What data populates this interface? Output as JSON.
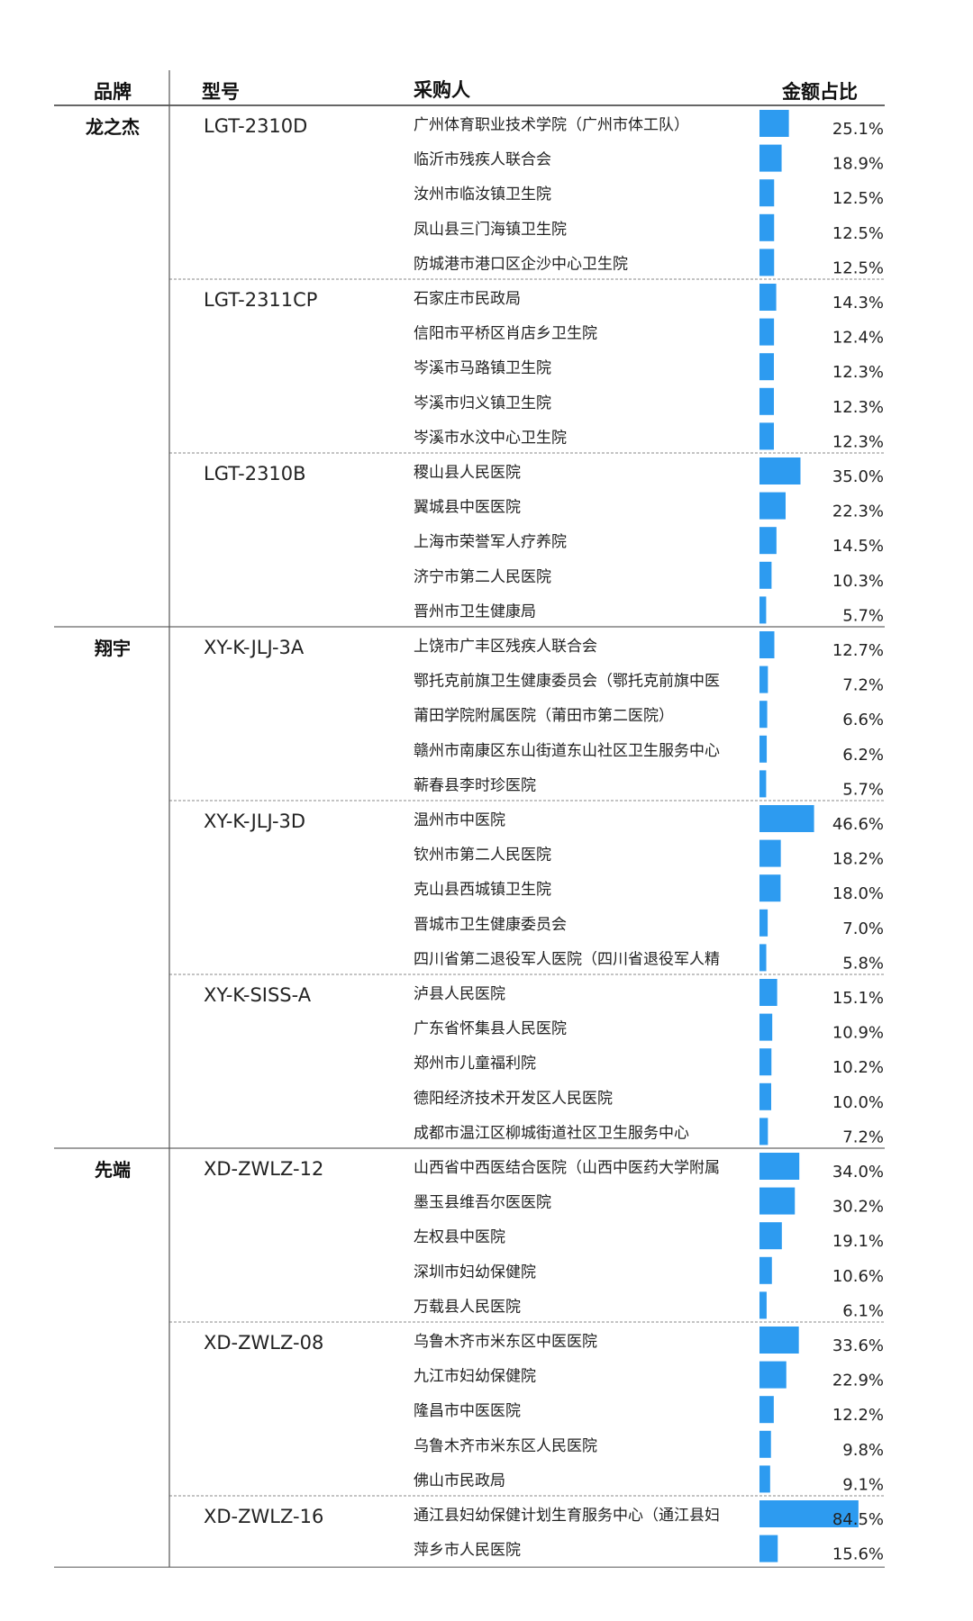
{
  "chart_data": {
    "type": "table",
    "columns": [
      "品牌",
      "型号",
      "采购人",
      "金额占比"
    ],
    "bar_color": "#2d9bf0",
    "groups": [
      {
        "brand": "龙之杰",
        "models": [
          {
            "model": "LGT-2310D",
            "rows": [
              {
                "buyer": "广州体育职业技术学院（广州市体工队）",
                "share": 25.1
              },
              {
                "buyer": "临沂市残疾人联合会",
                "share": 18.9
              },
              {
                "buyer": "汝州市临汝镇卫生院",
                "share": 12.5
              },
              {
                "buyer": "凤山县三门海镇卫生院",
                "share": 12.5
              },
              {
                "buyer": "防城港市港口区企沙中心卫生院",
                "share": 12.5
              }
            ]
          },
          {
            "model": "LGT-2311CP",
            "rows": [
              {
                "buyer": "石家庄市民政局",
                "share": 14.3
              },
              {
                "buyer": "信阳市平桥区肖店乡卫生院",
                "share": 12.4
              },
              {
                "buyer": "岑溪市马路镇卫生院",
                "share": 12.3
              },
              {
                "buyer": "岑溪市归义镇卫生院",
                "share": 12.3
              },
              {
                "buyer": "岑溪市水汶中心卫生院",
                "share": 12.3
              }
            ]
          },
          {
            "model": "LGT-2310B",
            "rows": [
              {
                "buyer": "稷山县人民医院",
                "share": 35.0
              },
              {
                "buyer": "翼城县中医医院",
                "share": 22.3
              },
              {
                "buyer": "上海市荣誉军人疗养院",
                "share": 14.5
              },
              {
                "buyer": "济宁市第二人民医院",
                "share": 10.3
              },
              {
                "buyer": "晋州市卫生健康局",
                "share": 5.7
              }
            ]
          }
        ]
      },
      {
        "brand": "翔宇",
        "models": [
          {
            "model": "XY-K-JLJ-3A",
            "rows": [
              {
                "buyer": "上饶市广丰区残疾人联合会",
                "share": 12.7
              },
              {
                "buyer": "鄂托克前旗卫生健康委员会（鄂托克前旗中医",
                "share": 7.2
              },
              {
                "buyer": "莆田学院附属医院（莆田市第二医院）",
                "share": 6.6
              },
              {
                "buyer": "赣州市南康区东山街道东山社区卫生服务中心",
                "share": 6.2
              },
              {
                "buyer": "蕲春县李时珍医院",
                "share": 5.7
              }
            ]
          },
          {
            "model": "XY-K-JLJ-3D",
            "rows": [
              {
                "buyer": "温州市中医院",
                "share": 46.6
              },
              {
                "buyer": "钦州市第二人民医院",
                "share": 18.2
              },
              {
                "buyer": "克山县西城镇卫生院",
                "share": 18.0
              },
              {
                "buyer": "晋城市卫生健康委员会",
                "share": 7.0
              },
              {
                "buyer": "四川省第二退役军人医院（四川省退役军人精",
                "share": 5.8
              }
            ]
          },
          {
            "model": "XY-K-SISS-A",
            "rows": [
              {
                "buyer": "泸县人民医院",
                "share": 15.1
              },
              {
                "buyer": "广东省怀集县人民医院",
                "share": 10.9
              },
              {
                "buyer": "郑州市儿童福利院",
                "share": 10.2
              },
              {
                "buyer": "德阳经济技术开发区人民医院",
                "share": 10.0
              },
              {
                "buyer": "成都市温江区柳城街道社区卫生服务中心",
                "share": 7.2
              }
            ]
          }
        ]
      },
      {
        "brand": "先端",
        "models": [
          {
            "model": "XD-ZWLZ-12",
            "rows": [
              {
                "buyer": "山西省中西医结合医院（山西中医药大学附属",
                "share": 34.0
              },
              {
                "buyer": "墨玉县维吾尔医医院",
                "share": 30.2
              },
              {
                "buyer": "左权县中医院",
                "share": 19.1
              },
              {
                "buyer": "深圳市妇幼保健院",
                "share": 10.6
              },
              {
                "buyer": "万载县人民医院",
                "share": 6.1
              }
            ]
          },
          {
            "model": "XD-ZWLZ-08",
            "rows": [
              {
                "buyer": "乌鲁木齐市米东区中医医院",
                "share": 33.6
              },
              {
                "buyer": "九江市妇幼保健院",
                "share": 22.9
              },
              {
                "buyer": "隆昌市中医医院",
                "share": 12.2
              },
              {
                "buyer": "乌鲁木齐市米东区人民医院",
                "share": 9.8
              },
              {
                "buyer": "佛山市民政局",
                "share": 9.1
              }
            ]
          },
          {
            "model": "XD-ZWLZ-16",
            "rows": [
              {
                "buyer": "通江县妇幼保健计划生育服务中心（通江县妇",
                "share": 84.5
              },
              {
                "buyer": "萍乡市人民医院",
                "share": 15.6
              }
            ]
          }
        ]
      }
    ]
  }
}
